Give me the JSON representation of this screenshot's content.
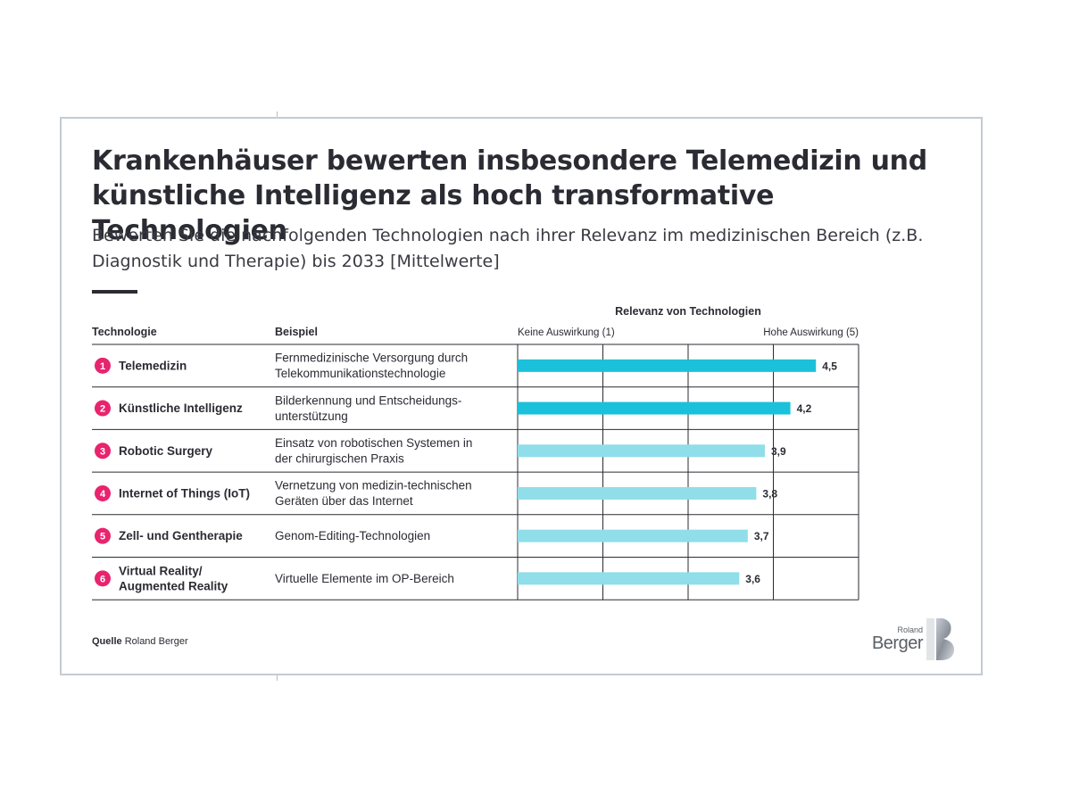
{
  "header": {
    "title": "Krankenhäuser bewerten insbesondere Telemedizin und künstliche Intelligenz als hoch transformative Technologien",
    "subtitle": "Bewerten Sie die nachfolgenden Technologien nach ihrer Relevanz im medizinischen Bereich (z.B. Diagnostik und Therapie) bis 2033 [Mittelwerte]"
  },
  "table": {
    "col_technology": "Technologie",
    "col_example": "Beispiel",
    "scale_title": "Relevanz von Technologien",
    "scale_low": "Keine Auswirkung (1)",
    "scale_high": "Hohe Auswirkung (5)"
  },
  "chart_data": {
    "type": "bar",
    "orientation": "horizontal",
    "title": "Relevanz von Technologien",
    "xlim": [
      1,
      5
    ],
    "grid": true,
    "categories": [
      "Telemedizin",
      "Künstliche Intelligenz",
      "Robotic Surgery",
      "Internet of Things (IoT)",
      "Zell- und Gentherapie",
      "Virtual Reality/ Augmented Reality"
    ],
    "numbers": [
      "1",
      "2",
      "3",
      "4",
      "5",
      "6"
    ],
    "examples": [
      "Fernmedizinische Versorgung durch Telekommunikationstechnologie",
      "Bilderkennung und Entscheidungs-unterstützung",
      "Einsatz von robotischen Systemen in der chirurgischen Praxis",
      "Vernetzung von medizin-technischen Geräten über das Internet",
      "Genom-Editing-Technologien",
      "Virtuelle Elemente im OP-Bereich"
    ],
    "values": [
      4.5,
      4.2,
      3.9,
      3.8,
      3.7,
      3.6
    ],
    "value_labels": [
      "4,5",
      "4,2",
      "3,9",
      "3,8",
      "3,7",
      "3,6"
    ],
    "colors": {
      "highlight": "#1bc1da",
      "normal": "#8fdee9",
      "badge": "#e8246e"
    },
    "highlighted": [
      true,
      true,
      false,
      false,
      false,
      false
    ]
  },
  "footer": {
    "source_label": "Quelle",
    "source_text": "Roland Berger"
  },
  "logo": {
    "small": "Roland",
    "big": "Berger"
  }
}
